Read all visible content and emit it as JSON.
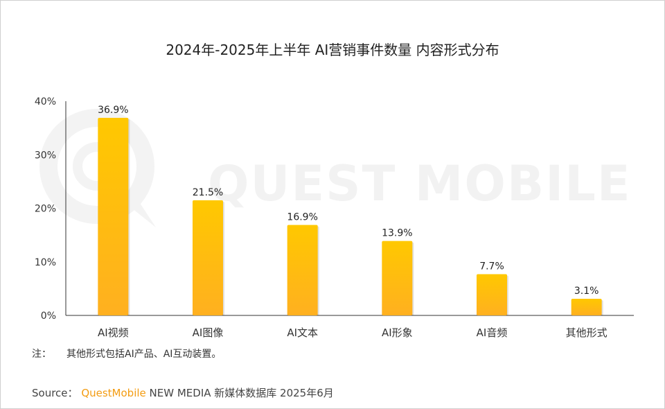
{
  "chart_data": {
    "type": "bar",
    "title": "2024年-2025年上半年 AI营销事件数量 内容形式分布",
    "categories": [
      "AI视频",
      "AI图像",
      "AI文本",
      "AI形象",
      "AI音频",
      "其他形式"
    ],
    "values": [
      36.9,
      21.5,
      16.9,
      13.9,
      7.7,
      3.1
    ],
    "data_labels": [
      "36.9%",
      "21.5%",
      "16.9%",
      "13.9%",
      "7.7%",
      "3.1%"
    ],
    "ylim": [
      0,
      40
    ],
    "yticks": [
      "0%",
      "10%",
      "20%",
      "30%",
      "40%"
    ],
    "xlabel": "",
    "ylabel": "",
    "grid": false,
    "bar_gradient": [
      "#ffc800",
      "#ffb020"
    ]
  },
  "watermark": "QUEST MOBILE",
  "note": {
    "label": "注：",
    "text": "其他形式包括AI产品、AI互动装置。"
  },
  "source": {
    "label": "Source：",
    "brand": "QuestMobile",
    "text": "NEW MEDIA 新媒体数据库 2025年6月"
  }
}
